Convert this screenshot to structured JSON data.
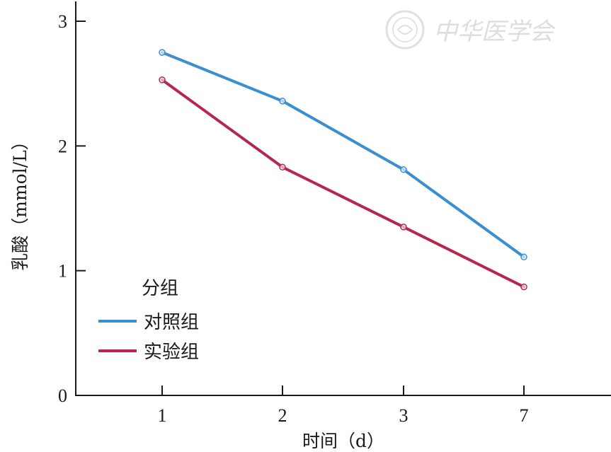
{
  "chart_data": {
    "type": "line",
    "x": [
      "1",
      "2",
      "3",
      "7"
    ],
    "xlabel": "时间（d）",
    "ylabel": "乳酸（mmol/L）",
    "ylim": [
      0,
      3
    ],
    "yticks": [
      "0",
      "1",
      "2",
      "3"
    ],
    "grid": false,
    "legend": {
      "title": "分组",
      "placement": "bottom-left"
    },
    "series": [
      {
        "name": "对照组",
        "color": "#3a8fd0",
        "values": [
          2.75,
          2.36,
          1.81,
          1.11
        ]
      },
      {
        "name": "实验组",
        "color": "#b5274d",
        "values": [
          2.53,
          1.83,
          1.35,
          0.87
        ]
      }
    ]
  },
  "watermark": {
    "text": "中华医学会",
    "icon": "society-seal-icon"
  }
}
